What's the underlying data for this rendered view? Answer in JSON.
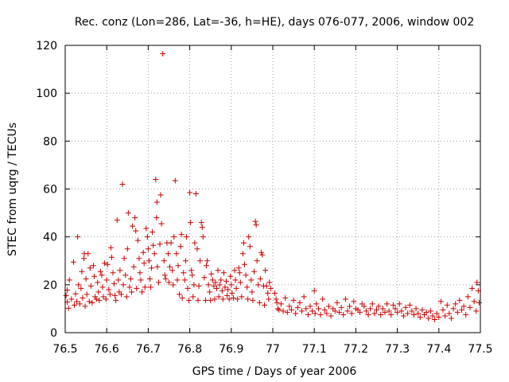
{
  "chart_data": {
    "type": "scatter",
    "title": "Rec. conz (Lon=286, Lat=-36, h=HE), days 076-077, 2006, window 002",
    "xlabel": "GPS time / Days of year 2006",
    "ylabel": "STEC from uqrg / TECUs",
    "xlim": [
      76.5,
      77.5
    ],
    "ylim": [
      0,
      120
    ],
    "xticks": [
      76.5,
      76.6,
      76.7,
      76.8,
      76.9,
      77.0,
      77.1,
      77.2,
      77.3,
      77.4,
      77.5
    ],
    "xtick_labels": [
      "76.5",
      "76.6",
      "76.7",
      "76.8",
      "76.9",
      "77",
      "77.1",
      "77.2",
      "77.3",
      "77.4",
      "77.5"
    ],
    "yticks": [
      0,
      20,
      40,
      60,
      80,
      100,
      120
    ],
    "ytick_labels": [
      "0",
      "20",
      "40",
      "60",
      "80",
      "100",
      "120"
    ],
    "grid": true,
    "marker": "+",
    "color": "#cc0000",
    "series": [
      {
        "name": "STEC",
        "points": [
          [
            76.502,
            15.5
          ],
          [
            76.505,
            12.8
          ],
          [
            76.508,
            10.2
          ],
          [
            76.505,
            17.8
          ],
          [
            76.51,
            22.0
          ],
          [
            76.515,
            14.0
          ],
          [
            76.52,
            29.5
          ],
          [
            76.522,
            11.5
          ],
          [
            76.525,
            16.2
          ],
          [
            76.528,
            13.0
          ],
          [
            76.53,
            40.0
          ],
          [
            76.532,
            20.0
          ],
          [
            76.535,
            12.0
          ],
          [
            76.538,
            18.5
          ],
          [
            76.54,
            25.5
          ],
          [
            76.542,
            14.5
          ],
          [
            76.545,
            31.0
          ],
          [
            76.546,
            33.0
          ],
          [
            76.548,
            11.0
          ],
          [
            76.55,
            22.5
          ],
          [
            76.552,
            16.0
          ],
          [
            76.555,
            33.0
          ],
          [
            76.558,
            13.0
          ],
          [
            76.56,
            27.0
          ],
          [
            76.562,
            19.5
          ],
          [
            76.565,
            12.5
          ],
          [
            76.568,
            28.0
          ],
          [
            76.57,
            23.5
          ],
          [
            76.572,
            15.0
          ],
          [
            76.575,
            14.0
          ],
          [
            76.578,
            21.0
          ],
          [
            76.58,
            17.0
          ],
          [
            76.582,
            13.5
          ],
          [
            76.585,
            25.5
          ],
          [
            76.588,
            24.0
          ],
          [
            76.59,
            19.0
          ],
          [
            76.592,
            15.0
          ],
          [
            76.595,
            29.0
          ],
          [
            76.598,
            14.0
          ],
          [
            76.6,
            22.0
          ],
          [
            76.602,
            28.5
          ],
          [
            76.605,
            18.0
          ],
          [
            76.608,
            16.0
          ],
          [
            76.61,
            35.5
          ],
          [
            76.612,
            31.5
          ],
          [
            76.615,
            25.0
          ],
          [
            76.618,
            20.5
          ],
          [
            76.62,
            15.5
          ],
          [
            76.622,
            13.5
          ],
          [
            76.625,
            47.0
          ],
          [
            76.628,
            22.0
          ],
          [
            76.63,
            17.0
          ],
          [
            76.632,
            26.0
          ],
          [
            76.635,
            16.0
          ],
          [
            76.638,
            62.0
          ],
          [
            76.64,
            20.0
          ],
          [
            76.642,
            31.0
          ],
          [
            76.645,
            24.0
          ],
          [
            76.648,
            15.0
          ],
          [
            76.65,
            35.0
          ],
          [
            76.652,
            50.0
          ],
          [
            76.655,
            19.0
          ],
          [
            76.658,
            22.5
          ],
          [
            76.66,
            17.0
          ],
          [
            76.662,
            44.5
          ],
          [
            76.665,
            27.5
          ],
          [
            76.668,
            48.0
          ],
          [
            76.67,
            42.5
          ],
          [
            76.672,
            18.5
          ],
          [
            76.675,
            38.5
          ],
          [
            76.678,
            31.0
          ],
          [
            76.68,
            25.0
          ],
          [
            76.682,
            22.0
          ],
          [
            76.685,
            17.0
          ],
          [
            76.688,
            33.5
          ],
          [
            76.69,
            29.0
          ],
          [
            76.692,
            19.0
          ],
          [
            76.695,
            43.5
          ],
          [
            76.698,
            40.0
          ],
          [
            76.7,
            35.0
          ],
          [
            76.702,
            30.0
          ],
          [
            76.704,
            22.5
          ],
          [
            76.706,
            19.0
          ],
          [
            76.708,
            27.0
          ],
          [
            76.71,
            42.0
          ],
          [
            76.712,
            36.5
          ],
          [
            76.715,
            33.0
          ],
          [
            76.718,
            64.0
          ],
          [
            76.72,
            48.0
          ],
          [
            76.721,
            54.5
          ],
          [
            76.722,
            27.5
          ],
          [
            76.725,
            21.0
          ],
          [
            76.728,
            37.0
          ],
          [
            76.73,
            57.5
          ],
          [
            76.732,
            45.5
          ],
          [
            76.735,
            116.5
          ],
          [
            76.738,
            30.0
          ],
          [
            76.74,
            24.0
          ],
          [
            76.742,
            22.5
          ],
          [
            76.745,
            37.5
          ],
          [
            76.748,
            33.0
          ],
          [
            76.75,
            21.0
          ],
          [
            76.752,
            27.5
          ],
          [
            76.755,
            37.5
          ],
          [
            76.758,
            26.0
          ],
          [
            76.76,
            20.0
          ],
          [
            76.762,
            40.0
          ],
          [
            76.765,
            63.5
          ],
          [
            76.768,
            33.0
          ],
          [
            76.77,
            22.0
          ],
          [
            76.772,
            28.0
          ],
          [
            76.775,
            16.0
          ],
          [
            76.778,
            36.0
          ],
          [
            76.78,
            41.0
          ],
          [
            76.782,
            14.5
          ],
          [
            76.785,
            25.0
          ],
          [
            76.788,
            22.0
          ],
          [
            76.79,
            30.0
          ],
          [
            76.792,
            40.0
          ],
          [
            76.795,
            18.5
          ],
          [
            76.798,
            13.5
          ],
          [
            76.8,
            58.5
          ],
          [
            76.802,
            46.0
          ],
          [
            76.804,
            26.0
          ],
          [
            76.806,
            24.0
          ],
          [
            76.808,
            15.0
          ],
          [
            76.81,
            20.0
          ],
          [
            76.812,
            37.5
          ],
          [
            76.815,
            58.0
          ],
          [
            76.818,
            35.0
          ],
          [
            76.82,
            13.5
          ],
          [
            76.822,
            19.5
          ],
          [
            76.825,
            30.0
          ],
          [
            76.828,
            46.0
          ],
          [
            76.83,
            44.0
          ],
          [
            76.832,
            40.0
          ],
          [
            76.835,
            23.0
          ],
          [
            76.838,
            13.5
          ],
          [
            76.84,
            28.0
          ],
          [
            76.842,
            30.0
          ],
          [
            76.845,
            20.0
          ],
          [
            76.848,
            17.0
          ],
          [
            76.85,
            13.5
          ],
          [
            76.852,
            24.5
          ],
          [
            76.855,
            22.0
          ],
          [
            76.858,
            19.5
          ],
          [
            76.86,
            14.0
          ],
          [
            76.862,
            21.0
          ],
          [
            76.865,
            18.5
          ],
          [
            76.868,
            26.0
          ],
          [
            76.87,
            15.0
          ],
          [
            76.872,
            20.0
          ],
          [
            76.875,
            22.0
          ],
          [
            76.878,
            17.5
          ],
          [
            76.88,
            14.0
          ],
          [
            76.882,
            25.0
          ],
          [
            76.885,
            19.0
          ],
          [
            76.888,
            21.5
          ],
          [
            76.89,
            15.5
          ],
          [
            76.892,
            18.0
          ],
          [
            76.895,
            14.0
          ],
          [
            76.898,
            23.5
          ],
          [
            76.9,
            20.0
          ],
          [
            76.902,
            16.5
          ],
          [
            76.905,
            14.5
          ],
          [
            76.908,
            26.0
          ],
          [
            76.91,
            22.0
          ],
          [
            76.912,
            18.5
          ],
          [
            76.915,
            14.0
          ],
          [
            76.918,
            27.0
          ],
          [
            76.92,
            25.0
          ],
          [
            76.922,
            21.0
          ],
          [
            76.925,
            15.0
          ],
          [
            76.928,
            33.0
          ],
          [
            76.93,
            37.5
          ],
          [
            76.932,
            28.5
          ],
          [
            76.935,
            24.0
          ],
          [
            76.938,
            19.0
          ],
          [
            76.94,
            14.0
          ],
          [
            76.942,
            40.0
          ],
          [
            76.945,
            36.0
          ],
          [
            76.948,
            22.0
          ],
          [
            76.95,
            17.0
          ],
          [
            76.952,
            13.5
          ],
          [
            76.955,
            25.5
          ],
          [
            76.958,
            46.5
          ],
          [
            76.96,
            45.0
          ],
          [
            76.962,
            30.0
          ],
          [
            76.965,
            20.0
          ],
          [
            76.968,
            12.5
          ],
          [
            76.97,
            22.5
          ],
          [
            76.972,
            33.5
          ],
          [
            76.975,
            32.5
          ],
          [
            76.978,
            19.5
          ],
          [
            76.98,
            11.5
          ],
          [
            76.982,
            26.0
          ],
          [
            76.985,
            19.5
          ],
          [
            76.988,
            16.5
          ],
          [
            76.99,
            14.0
          ],
          [
            76.992,
            21.0
          ],
          [
            76.995,
            18.5
          ],
          [
            77.005,
            16.5
          ],
          [
            77.008,
            14.0
          ],
          [
            77.01,
            12.5
          ],
          [
            77.012,
            10.0
          ],
          [
            77.015,
            9.5
          ],
          [
            77.02,
            12.0
          ],
          [
            77.025,
            9.0
          ],
          [
            77.03,
            14.5
          ],
          [
            77.035,
            8.5
          ],
          [
            77.04,
            11.0
          ],
          [
            77.045,
            9.5
          ],
          [
            77.05,
            13.5
          ],
          [
            77.055,
            8.0
          ],
          [
            77.06,
            10.5
          ],
          [
            77.065,
            12.5
          ],
          [
            77.07,
            9.0
          ],
          [
            77.075,
            15.0
          ],
          [
            77.08,
            10.0
          ],
          [
            77.085,
            7.5
          ],
          [
            77.09,
            11.0
          ],
          [
            77.095,
            9.0
          ],
          [
            77.1,
            17.5
          ],
          [
            77.102,
            8.0
          ],
          [
            77.105,
            12.0
          ],
          [
            77.11,
            10.0
          ],
          [
            77.115,
            7.5
          ],
          [
            77.12,
            14.0
          ],
          [
            77.125,
            9.5
          ],
          [
            77.13,
            8.0
          ],
          [
            77.135,
            11.0
          ],
          [
            77.14,
            7.0
          ],
          [
            77.145,
            10.0
          ],
          [
            77.15,
            9.0
          ],
          [
            77.155,
            12.5
          ],
          [
            77.16,
            8.5
          ],
          [
            77.165,
            10.5
          ],
          [
            77.17,
            7.5
          ],
          [
            77.175,
            14.0
          ],
          [
            77.18,
            9.0
          ],
          [
            77.185,
            11.0
          ],
          [
            77.19,
            8.0
          ],
          [
            77.195,
            13.0
          ],
          [
            77.2,
            10.0
          ],
          [
            77.205,
            9.5
          ],
          [
            77.21,
            8.5
          ],
          [
            77.215,
            12.0
          ],
          [
            77.22,
            11.0
          ],
          [
            77.225,
            9.0
          ],
          [
            77.23,
            7.5
          ],
          [
            77.235,
            10.0
          ],
          [
            77.24,
            12.0
          ],
          [
            77.245,
            8.0
          ],
          [
            77.25,
            9.5
          ],
          [
            77.255,
            11.0
          ],
          [
            77.26,
            7.5
          ],
          [
            77.265,
            10.0
          ],
          [
            77.27,
            8.5
          ],
          [
            77.275,
            12.0
          ],
          [
            77.28,
            9.0
          ],
          [
            77.285,
            7.5
          ],
          [
            77.29,
            11.5
          ],
          [
            77.295,
            10.0
          ],
          [
            77.3,
            8.5
          ],
          [
            77.305,
            12.0
          ],
          [
            77.31,
            9.0
          ],
          [
            77.315,
            7.0
          ],
          [
            77.32,
            10.5
          ],
          [
            77.325,
            8.0
          ],
          [
            77.33,
            11.5
          ],
          [
            77.335,
            9.0
          ],
          [
            77.34,
            7.5
          ],
          [
            77.345,
            10.0
          ],
          [
            77.35,
            8.0
          ],
          [
            77.355,
            6.5
          ],
          [
            77.36,
            9.5
          ],
          [
            77.365,
            7.5
          ],
          [
            77.37,
            8.5
          ],
          [
            77.375,
            6.0
          ],
          [
            77.38,
            9.0
          ],
          [
            77.385,
            7.0
          ],
          [
            77.39,
            5.5
          ],
          [
            77.395,
            8.0
          ],
          [
            77.4,
            6.5
          ],
          [
            77.405,
            13.0
          ],
          [
            77.41,
            9.5
          ],
          [
            77.415,
            7.0
          ],
          [
            77.42,
            11.5
          ],
          [
            77.425,
            8.0
          ],
          [
            77.43,
            6.0
          ],
          [
            77.435,
            10.0
          ],
          [
            77.44,
            12.0
          ],
          [
            77.445,
            8.5
          ],
          [
            77.45,
            13.5
          ],
          [
            77.455,
            9.5
          ],
          [
            77.46,
            11.0
          ],
          [
            77.465,
            7.5
          ],
          [
            77.47,
            15.0
          ],
          [
            77.475,
            10.5
          ],
          [
            77.48,
            18.5
          ],
          [
            77.485,
            13.0
          ],
          [
            77.49,
            9.0
          ],
          [
            77.492,
            21.0
          ],
          [
            77.495,
            17.5
          ],
          [
            77.497,
            12.5
          ]
        ]
      }
    ]
  }
}
